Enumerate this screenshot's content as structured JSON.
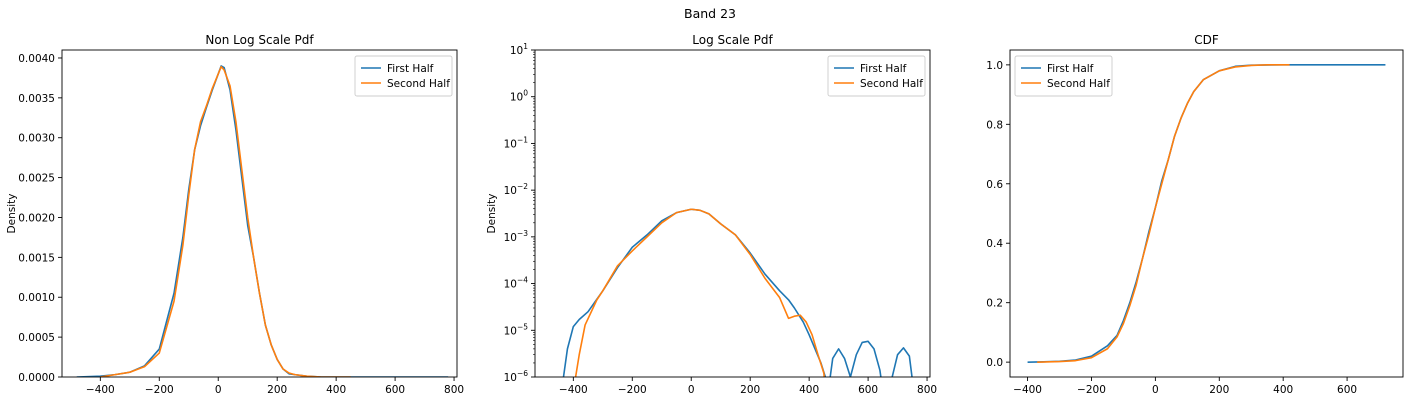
{
  "suptitle": "Band 23",
  "colors": {
    "first": "#1f77b4",
    "second": "#ff7f0e",
    "axes": "#000000"
  },
  "chart_data": [
    {
      "type": "line",
      "title": "Non Log Scale Pdf",
      "xlabel": "",
      "ylabel": "Density",
      "xlim": [
        -530,
        810
      ],
      "ylim": [
        0,
        0.0041
      ],
      "xticks": [
        -400,
        -200,
        0,
        200,
        400,
        600,
        800
      ],
      "xtick_labels": [
        "−400",
        "−200",
        "0",
        "200",
        "400",
        "600",
        "800"
      ],
      "yticks": [
        0,
        0.0005,
        0.001,
        0.0015,
        0.002,
        0.0025,
        0.003,
        0.0035,
        0.004
      ],
      "ytick_labels": [
        "0.0000",
        "0.0005",
        "0.0010",
        "0.0015",
        "0.0020",
        "0.0025",
        "0.0030",
        "0.0035",
        "0.0040"
      ],
      "legend": {
        "position": "top-right",
        "entries": [
          "First Half",
          "Second Half"
        ]
      },
      "series": [
        {
          "name": "First Half",
          "color": "#1f77b4",
          "x": [
            -480,
            -400,
            -350,
            -300,
            -250,
            -200,
            -150,
            -120,
            -100,
            -80,
            -60,
            -40,
            -20,
            0,
            10,
            20,
            40,
            60,
            80,
            100,
            120,
            140,
            160,
            180,
            200,
            220,
            240,
            260,
            300,
            350,
            400,
            500,
            600,
            700,
            780
          ],
          "y": [
            0,
            1e-05,
            3e-05,
            6e-05,
            0.00014,
            0.00035,
            0.00105,
            0.00175,
            0.00235,
            0.00285,
            0.00315,
            0.00338,
            0.0036,
            0.0038,
            0.0039,
            0.00388,
            0.0036,
            0.0031,
            0.0025,
            0.0019,
            0.0015,
            0.00105,
            0.00065,
            0.0004,
            0.00022,
            0.0001,
            4e-05,
            3e-05,
            1e-05,
            0,
            0,
            0,
            0,
            0,
            0
          ]
        },
        {
          "name": "Second Half",
          "color": "#ff7f0e",
          "x": [
            -400,
            -350,
            -300,
            -250,
            -200,
            -150,
            -120,
            -100,
            -80,
            -60,
            -40,
            -20,
            0,
            10,
            20,
            40,
            60,
            80,
            100,
            120,
            140,
            160,
            180,
            200,
            220,
            240,
            260,
            300,
            350,
            400,
            450
          ],
          "y": [
            0,
            3e-05,
            6e-05,
            0.00013,
            0.0003,
            0.00095,
            0.00165,
            0.00228,
            0.00285,
            0.0032,
            0.0034,
            0.00362,
            0.0038,
            0.00389,
            0.00385,
            0.00365,
            0.0032,
            0.0026,
            0.002,
            0.0015,
            0.00105,
            0.00065,
            0.0004,
            0.00022,
            0.0001,
            5e-05,
            3e-05,
            1e-05,
            0,
            0,
            0
          ]
        }
      ]
    },
    {
      "type": "line",
      "title": "Log Scale Pdf",
      "xlabel": "",
      "ylabel": "Density",
      "yscale": "log",
      "xlim": [
        -530,
        810
      ],
      "ylim": [
        1e-06,
        10
      ],
      "xticks": [
        -400,
        -200,
        0,
        200,
        400,
        600,
        800
      ],
      "xtick_labels": [
        "−400",
        "−200",
        "0",
        "200",
        "400",
        "600",
        "800"
      ],
      "yticks_exp": [
        -6,
        -5,
        -4,
        -3,
        -2,
        -1,
        0,
        1
      ],
      "legend": {
        "position": "top-right",
        "entries": [
          "First Half",
          "Second Half"
        ]
      },
      "series": [
        {
          "name": "First Half",
          "color": "#1f77b4",
          "x": [
            -440,
            -420,
            -400,
            -380,
            -350,
            -300,
            -250,
            -200,
            -150,
            -100,
            -50,
            0,
            30,
            60,
            100,
            150,
            200,
            250,
            300,
            330,
            350,
            380,
            400,
            420,
            440,
            455,
            465,
            480,
            500,
            520,
            540,
            560,
            580,
            600,
            620,
            640,
            650,
            660,
            680,
            700,
            720,
            740,
            755
          ],
          "y": [
            5e-07,
            4e-06,
            1.2e-05,
            1.7e-05,
            2.5e-05,
            7e-05,
            0.00022,
            0.0006,
            0.0011,
            0.0022,
            0.0033,
            0.0039,
            0.0037,
            0.0031,
            0.0019,
            0.0011,
            0.00045,
            0.00016,
            7e-05,
            4.5e-05,
            3e-05,
            1.5e-05,
            8e-06,
            4e-06,
            2e-06,
            1e-06,
            5e-07,
            2.5e-06,
            4e-06,
            2.5e-06,
            1e-06,
            3e-06,
            5.5e-06,
            5.8e-06,
            4e-06,
            1.4e-06,
            5e-07,
            5e-07,
            9e-07,
            3e-06,
            4.2e-06,
            2.8e-06,
            5e-07
          ]
        },
        {
          "name": "Second Half",
          "color": "#ff7f0e",
          "x": [
            -400,
            -380,
            -360,
            -320,
            -300,
            -250,
            -200,
            -150,
            -100,
            -50,
            0,
            30,
            60,
            100,
            150,
            200,
            250,
            300,
            330,
            350,
            370,
            390,
            410,
            430,
            450,
            455
          ],
          "y": [
            5e-07,
            3e-06,
            1.3e-05,
            4.5e-05,
            7e-05,
            0.00024,
            0.0005,
            0.001,
            0.002,
            0.0033,
            0.0039,
            0.0037,
            0.0031,
            0.0019,
            0.0011,
            0.00042,
            0.00013,
            5e-05,
            1.8e-05,
            2e-05,
            2.1e-05,
            1.5e-05,
            8e-06,
            3e-06,
            1.2e-06,
            5e-07
          ]
        }
      ]
    },
    {
      "type": "line",
      "title": "CDF",
      "xlabel": "",
      "ylabel": "",
      "xlim": [
        -455,
        775
      ],
      "ylim": [
        -0.05,
        1.05
      ],
      "xticks": [
        -400,
        -200,
        0,
        200,
        400,
        600
      ],
      "xtick_labels": [
        "−400",
        "−200",
        "0",
        "200",
        "400",
        "600"
      ],
      "yticks": [
        0,
        0.2,
        0.4,
        0.6,
        0.8,
        1.0
      ],
      "ytick_labels": [
        "0.0",
        "0.2",
        "0.4",
        "0.6",
        "0.8",
        "1.0"
      ],
      "legend": {
        "position": "top-left",
        "entries": [
          "First Half",
          "Second Half"
        ]
      },
      "series": [
        {
          "name": "First Half",
          "color": "#1f77b4",
          "x": [
            -400,
            -350,
            -300,
            -250,
            -200,
            -150,
            -120,
            -100,
            -80,
            -60,
            -40,
            -20,
            0,
            20,
            40,
            60,
            80,
            100,
            120,
            150,
            200,
            250,
            300,
            400,
            500,
            600,
            720
          ],
          "y": [
            0,
            0.001,
            0.003,
            0.007,
            0.02,
            0.055,
            0.09,
            0.14,
            0.2,
            0.27,
            0.35,
            0.44,
            0.52,
            0.61,
            0.68,
            0.76,
            0.82,
            0.87,
            0.91,
            0.95,
            0.98,
            0.995,
            0.999,
            1.0,
            1.0,
            1.0,
            1.0
          ]
        },
        {
          "name": "Second Half",
          "color": "#ff7f0e",
          "x": [
            -370,
            -330,
            -300,
            -250,
            -200,
            -150,
            -120,
            -100,
            -80,
            -60,
            -40,
            -20,
            0,
            20,
            40,
            60,
            80,
            100,
            120,
            150,
            200,
            250,
            300,
            350,
            420
          ],
          "y": [
            0,
            0.001,
            0.002,
            0.005,
            0.015,
            0.045,
            0.085,
            0.13,
            0.19,
            0.26,
            0.35,
            0.43,
            0.52,
            0.6,
            0.68,
            0.76,
            0.82,
            0.87,
            0.91,
            0.95,
            0.98,
            0.993,
            0.998,
            1.0,
            1.0
          ]
        }
      ]
    }
  ]
}
